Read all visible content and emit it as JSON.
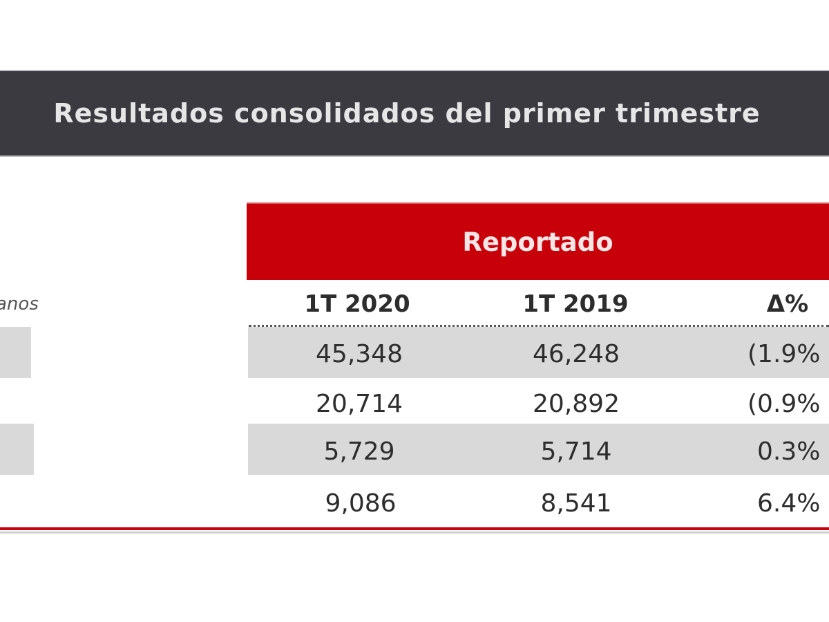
{
  "title": "Resultados consolidados del primer trimestre",
  "group_header": "Reportado",
  "unit_label": "anos",
  "columns": [
    "1T 2020",
    "1T 2019",
    "Δ%"
  ],
  "rows": [
    {
      "v2020": "45,348",
      "v2019": "46,248",
      "delta": "(1.9%",
      "shaded": true
    },
    {
      "v2020": "20,714",
      "v2019": "20,892",
      "delta": "(0.9%",
      "shaded": false
    },
    {
      "v2020": "5,729",
      "v2019": "5,714",
      "delta": "0.3%",
      "shaded": true
    },
    {
      "v2020": "9,086",
      "v2019": "8,541",
      "delta": "6.4%",
      "shaded": false
    }
  ],
  "colors": {
    "title_bar": "#3a3a40",
    "reported_bar": "#c8000a",
    "row_shade": "#d9d9d9",
    "rule": "#c8000a"
  }
}
